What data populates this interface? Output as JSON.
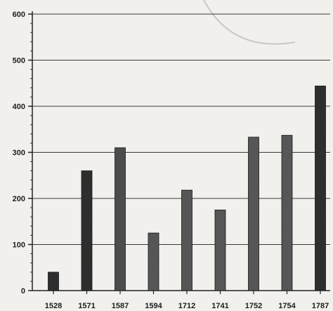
{
  "chart_data": {
    "type": "bar",
    "categories": [
      "1528",
      "1571",
      "1587",
      "1594",
      "1712",
      "1741",
      "1752",
      "1754",
      "1787"
    ],
    "values": [
      40,
      260,
      310,
      125,
      218,
      175,
      333,
      337,
      444
    ],
    "ylim": [
      0,
      600
    ],
    "yticks": [
      "0",
      "100",
      "200",
      "300",
      "400",
      "500",
      "600"
    ],
    "grid": true,
    "bar_colors": [
      "#303030",
      "#303030",
      "#505050",
      "#5a5a5a",
      "#5a5a5a",
      "#5a5a5a",
      "#5a5a5a",
      "#5a5a5a",
      "#303030"
    ],
    "title": "",
    "xlabel": "",
    "ylabel": ""
  }
}
